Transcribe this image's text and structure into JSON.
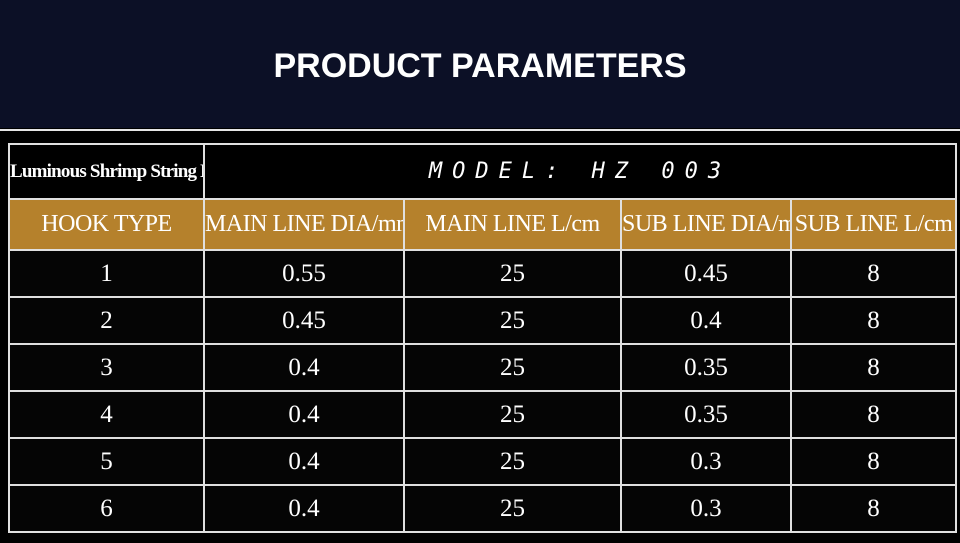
{
  "header": {
    "title": "PRODUCT PARAMETERS"
  },
  "table": {
    "product_name": "Luminous Shrimp String Hook",
    "model": "MODEL: HZ 003",
    "columns": [
      "HOOK TYPE",
      "MAIN LINE DIA/mm",
      "MAIN  LINE L/cm",
      "SUB LINE DIA/mm",
      "SUB LINE L/cm"
    ],
    "rows": [
      [
        "1",
        "0.55",
        "25",
        "0.45",
        "8"
      ],
      [
        "2",
        "0.45",
        "25",
        "0.4",
        "8"
      ],
      [
        "3",
        "0.4",
        "25",
        "0.35",
        "8"
      ],
      [
        "4",
        "0.4",
        "25",
        "0.35",
        "8"
      ],
      [
        "5",
        "0.4",
        "25",
        "0.3",
        "8"
      ],
      [
        "6",
        "0.4",
        "25",
        "0.3",
        "8"
      ]
    ]
  }
}
